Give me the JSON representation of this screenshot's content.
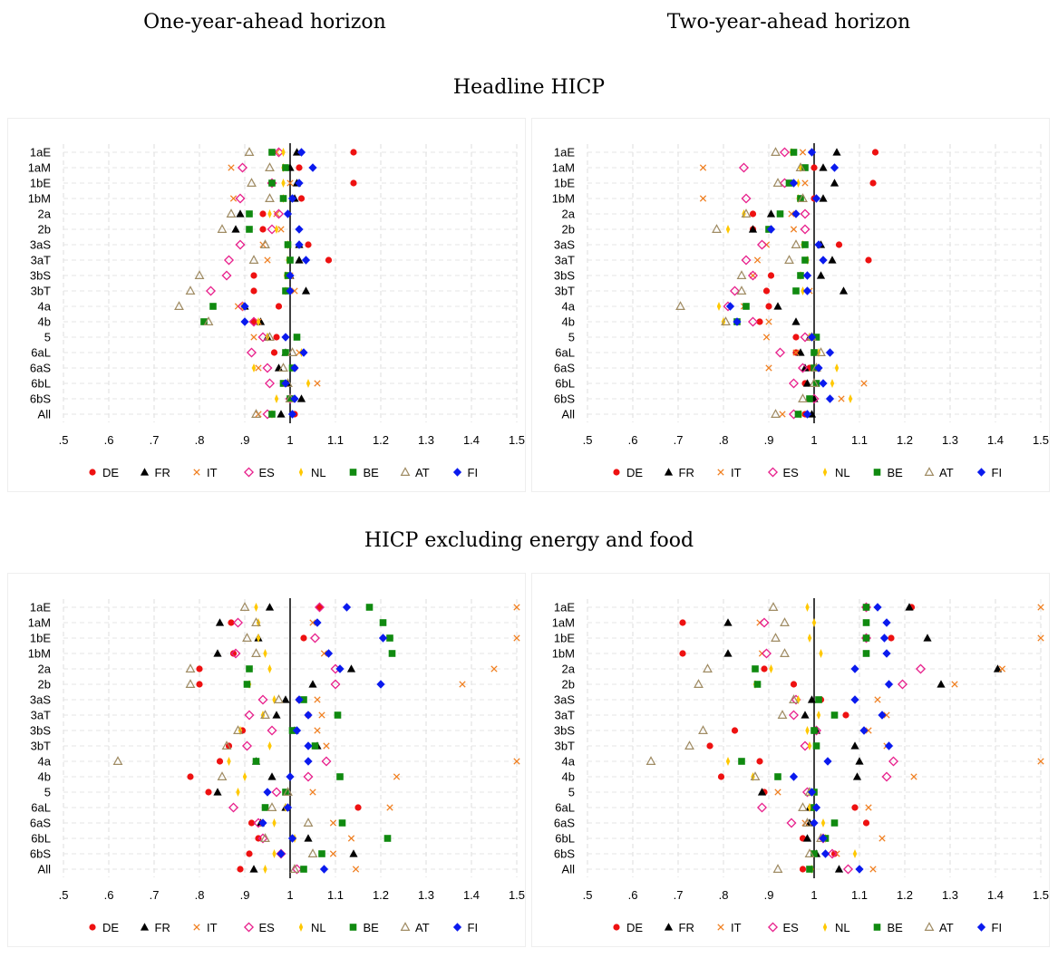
{
  "column_titles": [
    "One-year-ahead horizon",
    "Two-year-ahead horizon"
  ],
  "section_titles": [
    "Headline HICP",
    "HICP excluding energy and food"
  ],
  "series_styles": [
    {
      "name": "DE",
      "color": "#ee1111",
      "marker": "circle"
    },
    {
      "name": "FR",
      "color": "#000000",
      "marker": "triangle"
    },
    {
      "name": "IT",
      "color": "#f07f20",
      "marker": "x"
    },
    {
      "name": "ES",
      "color": "#e8208c",
      "marker": "diamond-hollow"
    },
    {
      "name": "NL",
      "color": "#ffc800",
      "marker": "spike"
    },
    {
      "name": "BE",
      "color": "#108a10",
      "marker": "square"
    },
    {
      "name": "AT",
      "color": "#a08c64",
      "marker": "triangle-hollow"
    },
    {
      "name": "FI",
      "color": "#0a1aee",
      "marker": "diamond"
    }
  ],
  "chart_data": [
    {
      "type": "scatter",
      "section": "Headline HICP",
      "horizon": "One-year-ahead horizon",
      "categories": [
        "1aE",
        "1aM",
        "1bE",
        "1bM",
        "2a",
        "2b",
        "3aS",
        "3aT",
        "3bS",
        "3bT",
        "4a",
        "4b",
        "5",
        "6aL",
        "6aS",
        "6bL",
        "6bS",
        "All"
      ],
      "xlim": [
        0.5,
        1.5
      ],
      "xticks": [
        ".5",
        ".6",
        ".7",
        ".8",
        ".9",
        "1",
        "1.1",
        "1.2",
        "1.3",
        "1.4",
        "1.5"
      ],
      "reference_line": 1,
      "legend_position": "bottom",
      "grid": true,
      "series": [
        {
          "name": "DE",
          "values": [
            1.14,
            1.02,
            1.14,
            1.025,
            0.94,
            0.94,
            1.04,
            1.085,
            0.92,
            0.92,
            0.975,
            0.92,
            0.97,
            0.965,
            1.01,
            0.99,
            1.0,
            1.01
          ]
        },
        {
          "name": "FR",
          "values": [
            1.015,
            1.0,
            1.015,
            1.01,
            0.89,
            0.88,
            1.02,
            1.02,
            1.0,
            1.035,
            0.9,
            0.935,
            0.95,
            0.99,
            0.975,
            0.995,
            1.025,
            0.98
          ]
        },
        {
          "name": "IT",
          "values": [
            0.97,
            0.87,
            1.0,
            0.875,
            0.97,
            0.98,
            0.94,
            0.95,
            1.0,
            1.01,
            0.885,
            0.93,
            0.92,
            1.02,
            0.93,
            1.06,
            1.0,
            0.93
          ]
        },
        {
          "name": "ES",
          "values": [
            0.975,
            0.895,
            0.96,
            0.89,
            0.975,
            0.96,
            0.89,
            0.865,
            0.86,
            0.825,
            0.895,
            0.92,
            0.94,
            0.915,
            0.95,
            0.955,
            1.0,
            0.95
          ]
        },
        {
          "name": "NL",
          "values": [
            0.985,
            0.985,
            0.985,
            0.985,
            0.955,
            0.97,
            0.995,
            0.995,
            0.99,
            0.99,
            0.895,
            0.93,
            0.95,
            1.025,
            0.92,
            1.04,
            0.97,
            0.96
          ]
        },
        {
          "name": "BE",
          "values": [
            0.96,
            0.99,
            0.96,
            0.985,
            0.91,
            0.91,
            0.995,
            1.0,
            0.995,
            0.99,
            0.83,
            0.81,
            1.015,
            0.99,
            1.005,
            0.985,
            1.0,
            0.96
          ]
        },
        {
          "name": "AT",
          "values": [
            0.91,
            0.955,
            0.915,
            0.955,
            0.87,
            0.85,
            0.945,
            0.92,
            0.8,
            0.78,
            0.755,
            0.82,
            0.955,
            1.005,
            0.985,
            0.995,
            1.0,
            0.925
          ]
        },
        {
          "name": "FI",
          "values": [
            1.025,
            1.05,
            1.02,
            1.005,
            0.995,
            1.02,
            1.02,
            1.035,
            1.0,
            1.0,
            0.9,
            0.9,
            0.99,
            1.03,
            1.01,
            0.99,
            1.01,
            1.005
          ]
        }
      ]
    },
    {
      "type": "scatter",
      "section": "Headline HICP",
      "horizon": "Two-year-ahead horizon",
      "categories": [
        "1aE",
        "1aM",
        "1bE",
        "1bM",
        "2a",
        "2b",
        "3aS",
        "3aT",
        "3bS",
        "3bT",
        "4a",
        "4b",
        "5",
        "6aL",
        "6aS",
        "6bL",
        "6bS",
        "All"
      ],
      "xlim": [
        0.5,
        1.5
      ],
      "xticks": [
        ".5",
        ".6",
        ".7",
        ".8",
        ".9",
        "1",
        "1.1",
        "1.2",
        "1.3",
        "1.4",
        "1.5"
      ],
      "reference_line": 1,
      "legend_position": "bottom",
      "grid": true,
      "series": [
        {
          "name": "DE",
          "values": [
            1.135,
            1.0,
            1.13,
            1.0,
            0.865,
            0.865,
            1.055,
            1.12,
            0.905,
            0.895,
            0.9,
            0.88,
            0.96,
            0.96,
            0.99,
            0.98,
            0.99,
            0.98
          ]
        },
        {
          "name": "FR",
          "values": [
            1.05,
            1.02,
            1.045,
            1.02,
            0.905,
            0.865,
            1.015,
            1.04,
            1.015,
            1.065,
            0.92,
            0.96,
            0.99,
            0.97,
            0.98,
            0.985,
            1.0,
            0.995
          ]
        },
        {
          "name": "IT",
          "values": [
            0.975,
            0.755,
            0.98,
            0.755,
            0.95,
            0.955,
            0.895,
            0.875,
            0.865,
            0.99,
            0.845,
            0.9,
            0.895,
            0.96,
            0.9,
            1.11,
            1.06,
            0.93
          ]
        },
        {
          "name": "ES",
          "values": [
            0.935,
            0.845,
            0.935,
            0.85,
            0.98,
            0.98,
            0.885,
            0.85,
            0.865,
            0.825,
            0.81,
            0.865,
            0.98,
            0.925,
            0.975,
            0.955,
            1.0,
            0.955
          ]
        },
        {
          "name": "NL",
          "values": [
            0.95,
            0.97,
            0.965,
            0.965,
            0.845,
            0.81,
            0.975,
            0.985,
            0.97,
            0.975,
            0.79,
            0.8,
            0.99,
            1.01,
            1.05,
            1.04,
            1.08,
            0.97
          ]
        },
        {
          "name": "BE",
          "values": [
            0.955,
            0.98,
            0.945,
            0.97,
            0.925,
            0.9,
            0.98,
            0.98,
            0.97,
            0.96,
            0.85,
            0.83,
            1.005,
            1.0,
            1.0,
            1.005,
            0.99,
            0.965
          ]
        },
        {
          "name": "AT",
          "values": [
            0.915,
            0.97,
            0.92,
            0.975,
            0.85,
            0.785,
            0.96,
            0.945,
            0.84,
            0.84,
            0.705,
            0.805,
            0.995,
            1.015,
            1.005,
            1.0,
            0.975,
            0.915
          ]
        },
        {
          "name": "FI",
          "values": [
            0.995,
            1.045,
            0.955,
            1.005,
            0.96,
            0.905,
            1.01,
            1.02,
            0.985,
            0.985,
            0.815,
            0.83,
            0.995,
            1.035,
            1.01,
            1.02,
            1.035,
            0.985
          ]
        }
      ]
    },
    {
      "type": "scatter",
      "section": "HICP excluding energy and food",
      "horizon": "One-year-ahead horizon",
      "categories": [
        "1aE",
        "1aM",
        "1bE",
        "1bM",
        "2a",
        "2b",
        "3aS",
        "3aT",
        "3bS",
        "3bT",
        "4a",
        "4b",
        "5",
        "6aL",
        "6aS",
        "6bL",
        "6bS",
        "All"
      ],
      "xlim": [
        0.5,
        1.5
      ],
      "xticks": [
        ".5",
        ".6",
        ".7",
        ".8",
        ".9",
        "1",
        "1.1",
        "1.2",
        "1.3",
        "1.4",
        "1.5"
      ],
      "reference_line": 1,
      "legend_position": "bottom",
      "grid": true,
      "series": [
        {
          "name": "DE",
          "values": [
            1.065,
            0.87,
            1.03,
            0.875,
            0.8,
            0.8,
            1.02,
            1.04,
            0.895,
            0.865,
            0.845,
            0.78,
            0.82,
            1.15,
            0.915,
            0.93,
            0.91,
            0.89
          ]
        },
        {
          "name": "FR",
          "values": [
            0.955,
            0.845,
            0.93,
            0.84,
            1.135,
            1.05,
            0.99,
            0.97,
            1.01,
            1.06,
            0.925,
            0.96,
            0.84,
            0.99,
            0.935,
            1.04,
            1.14,
            0.92
          ]
        },
        {
          "name": "IT",
          "values": [
            1.5,
            1.05,
            1.5,
            1.075,
            1.45,
            1.38,
            1.06,
            1.07,
            1.06,
            1.08,
            1.5,
            1.235,
            1.05,
            1.22,
            1.095,
            1.135,
            1.095,
            1.145
          ]
        },
        {
          "name": "ES",
          "values": [
            1.065,
            0.885,
            1.055,
            0.88,
            1.1,
            1.1,
            0.94,
            0.91,
            0.96,
            0.905,
            1.08,
            1.04,
            0.97,
            0.875,
            0.93,
            0.94,
            0.98,
            1.015
          ]
        },
        {
          "name": "NL",
          "values": [
            0.925,
            0.93,
            0.93,
            0.945,
            0.955,
            0.91,
            0.965,
            0.94,
            0.89,
            0.955,
            0.865,
            0.9,
            0.885,
            0.99,
            0.965,
            1.01,
            0.965,
            0.945
          ]
        },
        {
          "name": "BE",
          "values": [
            1.175,
            1.205,
            1.22,
            1.225,
            0.91,
            0.905,
            1.03,
            1.105,
            1.005,
            1.055,
            0.925,
            1.11,
            0.99,
            0.945,
            1.115,
            1.215,
            1.07,
            1.03
          ]
        },
        {
          "name": "AT",
          "values": [
            0.9,
            0.925,
            0.905,
            0.925,
            0.78,
            0.78,
            0.975,
            0.945,
            0.885,
            0.86,
            0.62,
            0.85,
            0.995,
            0.96,
            1.04,
            0.945,
            1.05,
            1.01
          ]
        },
        {
          "name": "FI",
          "values": [
            1.125,
            1.06,
            1.205,
            1.085,
            1.11,
            1.2,
            1.02,
            1.04,
            1.015,
            1.04,
            1.04,
            1.0,
            0.95,
            0.995,
            0.94,
            1.005,
            0.98,
            1.075
          ]
        }
      ]
    },
    {
      "type": "scatter",
      "section": "HICP excluding energy and food",
      "horizon": "Two-year-ahead horizon",
      "categories": [
        "1aE",
        "1aM",
        "1bE",
        "1bM",
        "2a",
        "2b",
        "3aS",
        "3aT",
        "3bS",
        "3bT",
        "4a",
        "4b",
        "5",
        "6aL",
        "6aS",
        "6bL",
        "6bS",
        "All"
      ],
      "xlim": [
        0.5,
        1.5
      ],
      "xticks": [
        ".5",
        ".6",
        ".7",
        ".8",
        ".9",
        "1",
        "1.1",
        "1.2",
        "1.3",
        "1.4",
        "1.5"
      ],
      "reference_line": 1,
      "legend_position": "bottom",
      "grid": true,
      "series": [
        {
          "name": "DE",
          "values": [
            1.215,
            0.71,
            1.17,
            0.71,
            0.89,
            0.955,
            1.015,
            1.07,
            0.825,
            0.77,
            0.88,
            0.795,
            0.89,
            1.09,
            1.115,
            0.975,
            1.045,
            0.975
          ]
        },
        {
          "name": "FR",
          "values": [
            1.21,
            0.81,
            1.25,
            0.81,
            1.405,
            1.28,
            0.995,
            0.98,
            1.005,
            1.09,
            1.1,
            1.095,
            0.885,
            0.99,
            0.99,
            0.985,
            1.005,
            1.055
          ]
        },
        {
          "name": "IT",
          "values": [
            1.5,
            0.88,
            1.5,
            0.885,
            1.415,
            1.31,
            1.14,
            1.16,
            1.12,
            1.16,
            1.5,
            1.22,
            0.92,
            1.12,
            0.98,
            1.15,
            1.05,
            1.13
          ]
        },
        {
          "name": "ES",
          "values": [
            1.115,
            0.89,
            1.115,
            0.895,
            1.235,
            1.195,
            0.96,
            0.955,
            1.005,
            0.98,
            1.175,
            1.16,
            0.985,
            0.885,
            0.95,
            1.02,
            1.04,
            1.075
          ]
        },
        {
          "name": "NL",
          "values": [
            0.985,
            1.0,
            0.99,
            1.015,
            0.905,
            0.87,
            0.965,
            1.01,
            0.985,
            0.99,
            0.81,
            0.865,
            0.99,
            0.99,
            1.02,
            1.025,
            1.09,
            0.995
          ]
        },
        {
          "name": "BE",
          "values": [
            1.115,
            1.115,
            1.115,
            1.115,
            0.87,
            0.875,
            1.01,
            1.045,
            1.0,
            1.005,
            0.84,
            0.92,
            1.0,
            1.0,
            1.045,
            1.025,
            1.0,
            0.99
          ]
        },
        {
          "name": "AT",
          "values": [
            0.91,
            0.935,
            0.915,
            0.935,
            0.765,
            0.745,
            0.955,
            0.93,
            0.755,
            0.725,
            0.64,
            0.87,
            0.99,
            0.975,
            0.985,
            1.015,
            0.99,
            0.92
          ]
        },
        {
          "name": "FI",
          "values": [
            1.14,
            1.16,
            1.155,
            1.16,
            1.09,
            1.165,
            1.09,
            1.15,
            1.11,
            1.165,
            1.03,
            0.955,
            0.995,
            1.005,
            1.0,
            1.02,
            1.025,
            1.1
          ]
        }
      ]
    }
  ]
}
